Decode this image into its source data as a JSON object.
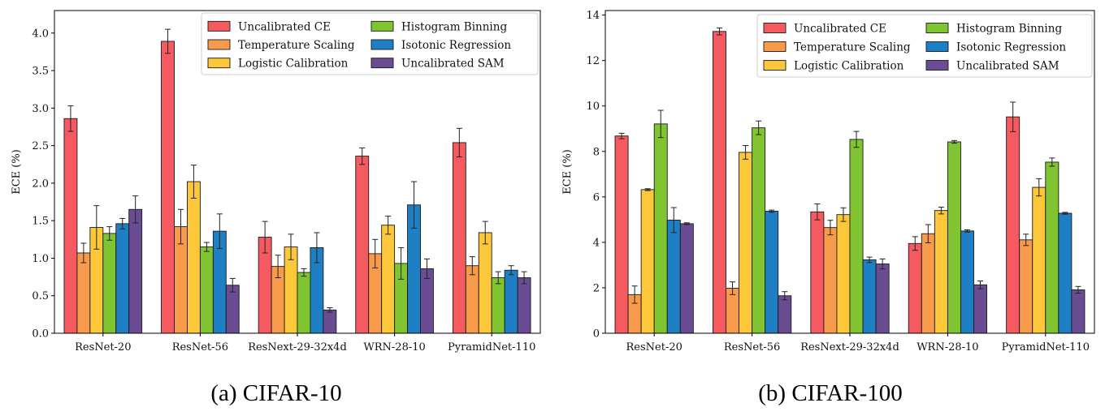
{
  "colors": {
    "Uncalibrated CE": "#f45a5f",
    "Temperature Scaling": "#f89a4c",
    "Logistic Calibration": "#fdc73a",
    "Histogram Binning": "#80c431",
    "Isotonic Regression": "#1f7fc4",
    "Uncalibrated SAM": "#6a4c93"
  },
  "chart_data": [
    {
      "type": "bar",
      "caption": "(a) CIFAR-10",
      "ylabel": "ECE (%)",
      "xlabel": "",
      "ylim": [
        0,
        4.3
      ],
      "yticks": [
        0.0,
        0.5,
        1.0,
        1.5,
        2.0,
        2.5,
        3.0,
        3.5,
        4.0
      ],
      "ytick_labels": [
        "0.0",
        "0.5",
        "1.0",
        "1.5",
        "2.0",
        "2.5",
        "3.0",
        "3.5",
        "4.0"
      ],
      "legend_position": "top-right",
      "legend_columns": 2,
      "categories": [
        "ResNet-20",
        "ResNet-56",
        "ResNext-29-32x4d",
        "WRN-28-10",
        "PyramidNet-110"
      ],
      "series": [
        {
          "name": "Uncalibrated CE",
          "values": [
            2.86,
            3.89,
            1.28,
            2.36,
            2.54
          ],
          "errors": [
            0.17,
            0.16,
            0.21,
            0.11,
            0.19
          ]
        },
        {
          "name": "Temperature Scaling",
          "values": [
            1.07,
            1.42,
            0.89,
            1.06,
            0.9
          ],
          "errors": [
            0.13,
            0.23,
            0.15,
            0.19,
            0.12
          ]
        },
        {
          "name": "Logistic Calibration",
          "values": [
            1.41,
            2.02,
            1.15,
            1.44,
            1.34
          ],
          "errors": [
            0.29,
            0.22,
            0.17,
            0.12,
            0.15
          ]
        },
        {
          "name": "Histogram Binning",
          "values": [
            1.33,
            1.15,
            0.81,
            0.93,
            0.74
          ],
          "errors": [
            0.09,
            0.06,
            0.05,
            0.21,
            0.08
          ]
        },
        {
          "name": "Isotonic Regression",
          "values": [
            1.46,
            1.36,
            1.14,
            1.71,
            0.84
          ],
          "errors": [
            0.07,
            0.23,
            0.2,
            0.31,
            0.06
          ]
        },
        {
          "name": "Uncalibrated SAM",
          "values": [
            1.65,
            0.64,
            0.31,
            0.86,
            0.74
          ],
          "errors": [
            0.18,
            0.09,
            0.03,
            0.13,
            0.08
          ]
        }
      ]
    },
    {
      "type": "bar",
      "caption": "(b) CIFAR-100",
      "ylabel": "ECE (%)",
      "xlabel": "",
      "ylim": [
        0,
        14.2
      ],
      "yticks": [
        0,
        2,
        4,
        6,
        8,
        10,
        12,
        14
      ],
      "ytick_labels": [
        "0",
        "2",
        "4",
        "6",
        "8",
        "10",
        "12",
        "14"
      ],
      "legend_position": "top-right",
      "legend_columns": 2,
      "categories": [
        "ResNet-20",
        "ResNet-56",
        "ResNext-29-32x4d",
        "WRN-28-10",
        "PyramidNet-110"
      ],
      "series": [
        {
          "name": "Uncalibrated CE",
          "values": [
            8.68,
            13.28,
            5.34,
            3.95,
            9.52
          ],
          "errors": [
            0.12,
            0.15,
            0.35,
            0.3,
            0.65
          ]
        },
        {
          "name": "Temperature Scaling",
          "values": [
            1.7,
            1.98,
            4.65,
            4.38,
            4.11
          ],
          "errors": [
            0.38,
            0.28,
            0.32,
            0.4,
            0.25
          ]
        },
        {
          "name": "Logistic Calibration",
          "values": [
            6.32,
            7.96,
            5.22,
            5.4,
            6.42
          ],
          "errors": [
            0.04,
            0.3,
            0.3,
            0.15,
            0.38
          ]
        },
        {
          "name": "Histogram Binning",
          "values": [
            9.21,
            9.04,
            8.53,
            8.42,
            7.53
          ],
          "errors": [
            0.6,
            0.3,
            0.35,
            0.06,
            0.18
          ]
        },
        {
          "name": "Isotonic Regression",
          "values": [
            4.98,
            5.37,
            3.23,
            4.5,
            5.28
          ],
          "errors": [
            0.55,
            0.05,
            0.12,
            0.05,
            0.04
          ]
        },
        {
          "name": "Uncalibrated SAM",
          "values": [
            4.82,
            1.65,
            3.05,
            2.13,
            1.91
          ],
          "errors": [
            0.04,
            0.18,
            0.22,
            0.17,
            0.15
          ]
        }
      ]
    }
  ]
}
